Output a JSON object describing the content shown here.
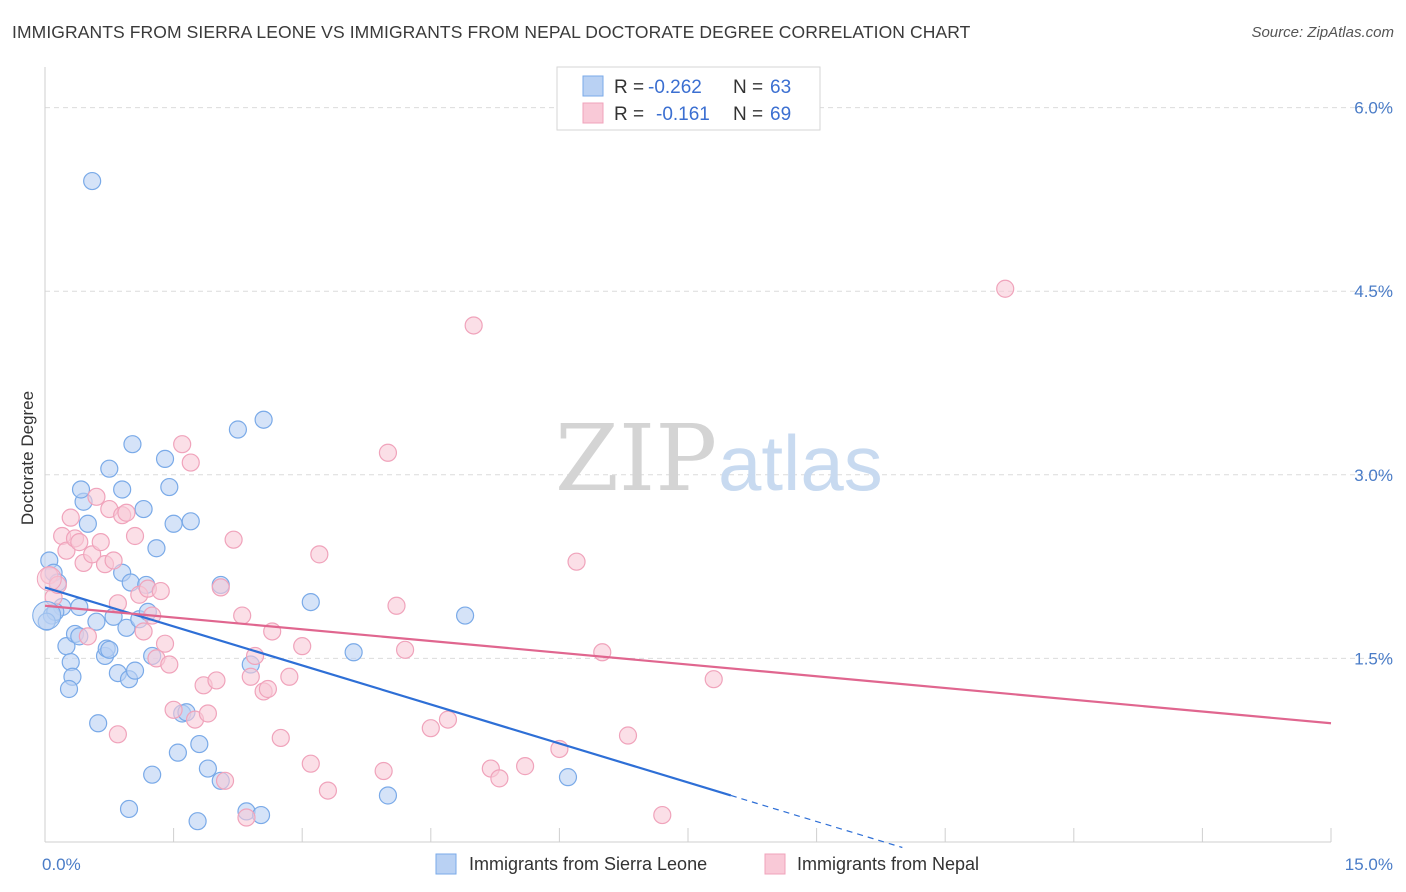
{
  "title": "IMMIGRANTS FROM SIERRA LEONE VS IMMIGRANTS FROM NEPAL DOCTORATE DEGREE CORRELATION CHART",
  "source": "Source: ZipAtlas.com",
  "watermark": {
    "zip": "ZIP",
    "atlas": "atlas"
  },
  "chart_data": {
    "type": "scatter",
    "xlabel": "",
    "ylabel": "Doctorate Degree",
    "xlim": [
      0,
      15
    ],
    "ylim": [
      0,
      6.25
    ],
    "x_tick_labels": [
      {
        "value": 0,
        "label": "0.0%"
      },
      {
        "value": 15,
        "label": "15.0%"
      }
    ],
    "y_tick_labels": [
      {
        "value": 1.5,
        "label": "1.5%"
      },
      {
        "value": 3.0,
        "label": "3.0%"
      },
      {
        "value": 4.5,
        "label": "4.5%"
      },
      {
        "value": 6.0,
        "label": "6.0%"
      }
    ],
    "x_minor_ticks": [
      0,
      1.5,
      3,
      4.5,
      6,
      7.5,
      9,
      10.5,
      12,
      13.5,
      15
    ],
    "grid": true,
    "legend": {
      "position": "top-center",
      "entries": [
        {
          "r_label": "R =",
          "r_value": "-0.262",
          "n_label": "N =",
          "n_value": "63"
        },
        {
          "r_label": "R =",
          "r_value": "-0.161",
          "n_label": "N =",
          "n_value": "69"
        }
      ]
    },
    "series": [
      {
        "name": "Immigrants from Sierra Leone",
        "color": "#7aaae8",
        "fill": "#b9d1f3",
        "line_color": "#2e6fd6",
        "trend": {
          "x0": 0,
          "y0": 2.08,
          "x1": 8.0,
          "y1": 0.38,
          "dash_to_x": 10.0
        },
        "points": [
          [
            0.55,
            5.4
          ],
          [
            0.05,
            2.3
          ],
          [
            0.1,
            2.2
          ],
          [
            0.15,
            2.12
          ],
          [
            0.2,
            1.92
          ],
          [
            0.08,
            1.85
          ],
          [
            0.12,
            1.88
          ],
          [
            0.25,
            1.6
          ],
          [
            0.3,
            1.47
          ],
          [
            0.32,
            1.35
          ],
          [
            0.28,
            1.25
          ],
          [
            0.35,
            1.7
          ],
          [
            0.4,
            1.68
          ],
          [
            0.45,
            2.78
          ],
          [
            0.5,
            2.6
          ],
          [
            0.42,
            2.88
          ],
          [
            0.6,
            1.8
          ],
          [
            0.7,
            1.52
          ],
          [
            0.72,
            1.58
          ],
          [
            0.75,
            1.57
          ],
          [
            0.8,
            1.84
          ],
          [
            0.85,
            1.38
          ],
          [
            0.9,
            2.2
          ],
          [
            0.95,
            1.75
          ],
          [
            0.98,
            1.33
          ],
          [
            1.0,
            2.12
          ],
          [
            1.05,
            1.4
          ],
          [
            1.1,
            1.82
          ],
          [
            1.15,
            2.72
          ],
          [
            1.18,
            2.1
          ],
          [
            1.2,
            1.88
          ],
          [
            1.25,
            1.52
          ],
          [
            1.3,
            2.4
          ],
          [
            1.4,
            3.13
          ],
          [
            1.45,
            2.9
          ],
          [
            1.5,
            2.6
          ],
          [
            1.6,
            1.05
          ],
          [
            1.7,
            2.62
          ],
          [
            0.75,
            3.05
          ],
          [
            0.9,
            2.88
          ],
          [
            1.02,
            3.25
          ],
          [
            0.62,
            0.97
          ],
          [
            1.55,
            0.73
          ],
          [
            1.25,
            0.55
          ],
          [
            0.98,
            0.27
          ],
          [
            1.8,
            0.8
          ],
          [
            1.9,
            0.6
          ],
          [
            2.05,
            0.5
          ],
          [
            1.78,
            0.17
          ],
          [
            2.35,
            0.25
          ],
          [
            2.52,
            0.22
          ],
          [
            2.4,
            1.45
          ],
          [
            2.05,
            2.1
          ],
          [
            2.25,
            3.37
          ],
          [
            2.55,
            3.45
          ],
          [
            3.1,
            1.96
          ],
          [
            3.6,
            1.55
          ],
          [
            4.0,
            0.38
          ],
          [
            4.9,
            1.85
          ],
          [
            6.1,
            0.53
          ],
          [
            0.4,
            1.92
          ],
          [
            0.02,
            1.8
          ],
          [
            1.65,
            1.06
          ]
        ]
      },
      {
        "name": "Immigrants from Nepal",
        "color": "#f0a3bb",
        "fill": "#f9c9d7",
        "line_color": "#e0668f",
        "trend": {
          "x0": 0,
          "y0": 1.93,
          "x1": 15.0,
          "y1": 0.97
        },
        "points": [
          [
            0.05,
            2.18
          ],
          [
            0.1,
            2.0
          ],
          [
            0.15,
            2.1
          ],
          [
            0.2,
            2.5
          ],
          [
            0.25,
            2.38
          ],
          [
            0.3,
            2.65
          ],
          [
            0.35,
            2.48
          ],
          [
            0.4,
            2.45
          ],
          [
            0.45,
            2.28
          ],
          [
            0.5,
            1.68
          ],
          [
            0.55,
            2.35
          ],
          [
            0.6,
            2.82
          ],
          [
            0.7,
            2.27
          ],
          [
            0.75,
            2.72
          ],
          [
            0.8,
            2.3
          ],
          [
            0.85,
            1.95
          ],
          [
            0.9,
            2.67
          ],
          [
            0.95,
            2.69
          ],
          [
            1.05,
            2.5
          ],
          [
            1.1,
            2.02
          ],
          [
            1.15,
            1.72
          ],
          [
            1.2,
            2.07
          ],
          [
            1.25,
            1.85
          ],
          [
            1.3,
            1.5
          ],
          [
            1.4,
            1.62
          ],
          [
            1.45,
            1.45
          ],
          [
            1.5,
            1.08
          ],
          [
            1.6,
            3.25
          ],
          [
            1.7,
            3.1
          ],
          [
            1.75,
            1.0
          ],
          [
            1.85,
            1.28
          ],
          [
            1.9,
            1.05
          ],
          [
            2.0,
            1.32
          ],
          [
            2.05,
            2.08
          ],
          [
            2.1,
            0.5
          ],
          [
            2.2,
            2.47
          ],
          [
            2.3,
            1.85
          ],
          [
            2.35,
            0.2
          ],
          [
            2.4,
            1.35
          ],
          [
            2.45,
            1.52
          ],
          [
            2.55,
            1.23
          ],
          [
            2.6,
            1.25
          ],
          [
            2.65,
            1.72
          ],
          [
            2.75,
            0.85
          ],
          [
            2.85,
            1.35
          ],
          [
            3.0,
            1.6
          ],
          [
            3.1,
            0.64
          ],
          [
            3.2,
            2.35
          ],
          [
            3.3,
            0.42
          ],
          [
            3.95,
            0.58
          ],
          [
            4.0,
            3.18
          ],
          [
            4.1,
            1.93
          ],
          [
            4.2,
            1.57
          ],
          [
            4.5,
            0.93
          ],
          [
            4.7,
            1.0
          ],
          [
            5.0,
            4.22
          ],
          [
            5.2,
            0.6
          ],
          [
            5.3,
            0.52
          ],
          [
            5.6,
            0.62
          ],
          [
            6.0,
            0.76
          ],
          [
            6.2,
            2.29
          ],
          [
            6.5,
            1.55
          ],
          [
            6.8,
            0.87
          ],
          [
            7.2,
            0.22
          ],
          [
            7.8,
            1.33
          ],
          [
            11.2,
            4.52
          ],
          [
            0.85,
            0.88
          ],
          [
            1.35,
            2.05
          ],
          [
            0.65,
            2.45
          ]
        ]
      }
    ]
  }
}
